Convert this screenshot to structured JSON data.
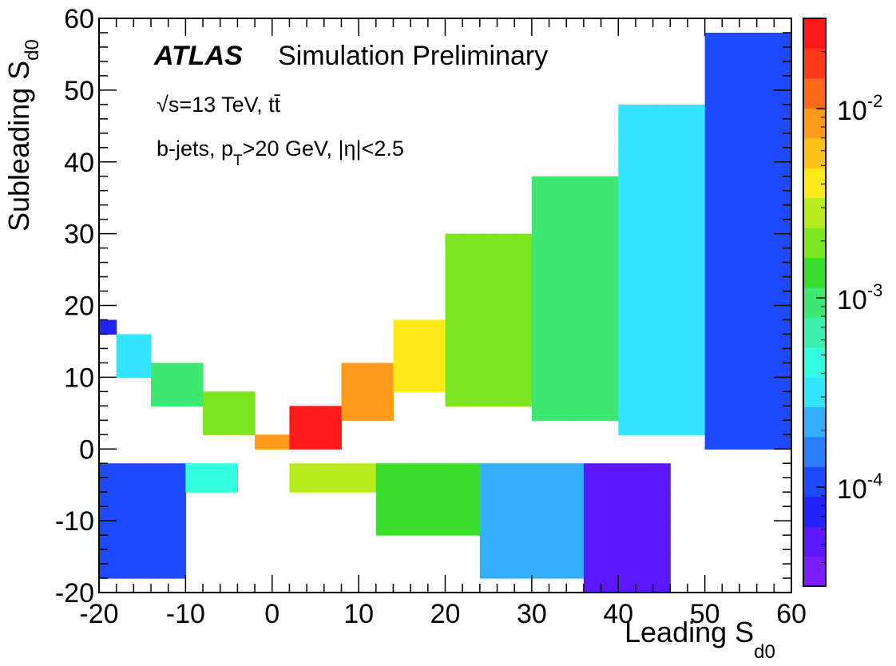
{
  "chart_data": {
    "type": "heatmap",
    "title": "",
    "xlabel": "Leading S",
    "xlabel_sub": "d0",
    "ylabel": "Subleading S",
    "ylabel_sub": "d0",
    "xlim": [
      -20,
      60
    ],
    "ylim": [
      -20,
      60
    ],
    "xticks": [
      "-20",
      "-10",
      "0",
      "10",
      "20",
      "30",
      "40",
      "50",
      "60"
    ],
    "yticks": [
      "-20",
      "-10",
      "0",
      "10",
      "20",
      "30",
      "40",
      "50",
      "60"
    ],
    "bin_width": 2,
    "zscale": "log",
    "zlim": [
      3e-05,
      0.03
    ],
    "colorbar_ticks": [
      {
        "base": "10",
        "exp": "-2",
        "value": 0.01
      },
      {
        "base": "10",
        "exp": "-3",
        "value": 0.001
      },
      {
        "base": "10",
        "exp": "-4",
        "value": 0.0001
      }
    ],
    "palette": [
      "#7a1dff",
      "#5c19ff",
      "#2222ff",
      "#1d49ff",
      "#2a7dff",
      "#33b0ff",
      "#33e5ff",
      "#33ffe0",
      "#3df0b0",
      "#3de870",
      "#38e02c",
      "#7ae61f",
      "#b8ec1e",
      "#ffe91a",
      "#ffc21a",
      "#ff9a1a",
      "#ff6a1a",
      "#ff3a1a",
      "#ff1a1a"
    ],
    "annotations": {
      "experiment": "ATLAS",
      "status": "Simulation Preliminary",
      "energy_line": "√s=13 TeV, tt̄",
      "selection_line": "b-jets, p",
      "selection_sub": "T",
      "selection_rest": ">20 GeV, |η|<2.5"
    },
    "regions": {
      "upper_band": [
        {
          "x": [
            -20,
            -18
          ],
          "y": [
            16,
            18
          ],
          "level": 2
        },
        {
          "x": [
            -18,
            -14
          ],
          "y": [
            10,
            16
          ],
          "level": 6
        },
        {
          "x": [
            -14,
            -8
          ],
          "y": [
            6,
            12
          ],
          "level": 9
        },
        {
          "x": [
            -8,
            -2
          ],
          "y": [
            2,
            8
          ],
          "level": 11
        },
        {
          "x": [
            -2,
            2
          ],
          "y": [
            0,
            2
          ],
          "level": 15
        },
        {
          "x": [
            2,
            8
          ],
          "y": [
            0,
            6
          ],
          "level": 18
        },
        {
          "x": [
            8,
            14
          ],
          "y": [
            4,
            12
          ],
          "level": 15
        },
        {
          "x": [
            14,
            20
          ],
          "y": [
            8,
            18
          ],
          "level": 13
        },
        {
          "x": [
            20,
            30
          ],
          "y": [
            6,
            30
          ],
          "level": 11
        },
        {
          "x": [
            30,
            40
          ],
          "y": [
            4,
            38
          ],
          "level": 9
        },
        {
          "x": [
            40,
            50
          ],
          "y": [
            2,
            48
          ],
          "level": 6
        },
        {
          "x": [
            50,
            60
          ],
          "y": [
            0,
            58
          ],
          "level": 3
        }
      ],
      "lower_band": [
        {
          "x": [
            -20,
            -10
          ],
          "y": [
            -18,
            -2
          ],
          "level": 3
        },
        {
          "x": [
            -10,
            -4
          ],
          "y": [
            -6,
            -2
          ],
          "level": 7
        },
        {
          "x": [
            2,
            12
          ],
          "y": [
            -6,
            -2
          ],
          "level": 12
        },
        {
          "x": [
            12,
            24
          ],
          "y": [
            -12,
            -2
          ],
          "level": 10
        },
        {
          "x": [
            24,
            36
          ],
          "y": [
            -18,
            -2
          ],
          "level": 5
        },
        {
          "x": [
            36,
            46
          ],
          "y": [
            -20,
            -2
          ],
          "level": 1
        }
      ]
    }
  }
}
